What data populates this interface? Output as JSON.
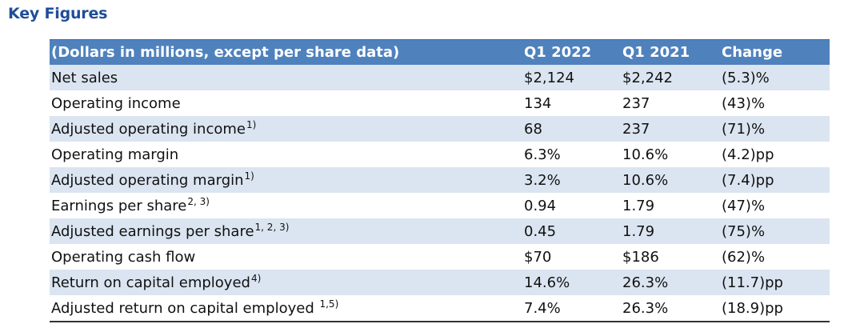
{
  "title": "Key Figures",
  "table": {
    "headers": [
      "(Dollars in millions, except per share data)",
      "Q1 2022",
      "Q1 2021",
      "Change"
    ],
    "rows": [
      {
        "label": "Net sales",
        "note": "",
        "q1_2022": "$2,124",
        "q1_2021": "$2,242",
        "change": "(5.3)%"
      },
      {
        "label": "Operating income",
        "note": "",
        "q1_2022": "134",
        "q1_2021": "237",
        "change": "(43)%"
      },
      {
        "label": "Adjusted operating income",
        "note": "1)",
        "q1_2022": "68",
        "q1_2021": "237",
        "change": "(71)%"
      },
      {
        "label": "Operating margin",
        "note": "",
        "q1_2022": "6.3%",
        "q1_2021": "10.6%",
        "change": "(4.2)pp"
      },
      {
        "label": "Adjusted operating margin",
        "note": "1)",
        "q1_2022": "3.2%",
        "q1_2021": "10.6%",
        "change": "(7.4)pp"
      },
      {
        "label": "Earnings per share",
        "note": "2, 3)",
        "q1_2022": "0.94",
        "q1_2021": "1.79",
        "change": "(47)%"
      },
      {
        "label": "Adjusted earnings per share",
        "note": "1, 2, 3)",
        "q1_2022": "0.45",
        "q1_2021": "1.79",
        "change": "(75)%"
      },
      {
        "label": "Operating cash flow",
        "note": "",
        "q1_2022": "$70",
        "q1_2021": "$186",
        "change": "(62)%"
      },
      {
        "label": "Return on capital employed",
        "note": "4)",
        "q1_2022": "14.6%",
        "q1_2021": "26.3%",
        "change": "(11.7)pp"
      },
      {
        "label": "Adjusted return on capital employed ",
        "note": "1,5)",
        "q1_2022": "7.4%",
        "q1_2021": "26.3%",
        "change": "(18.9)pp"
      }
    ]
  }
}
